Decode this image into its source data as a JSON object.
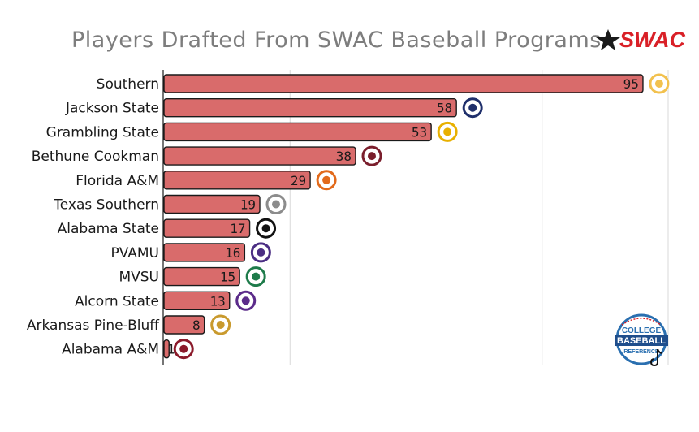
{
  "brand": {
    "name": "SWAC",
    "color": "#d92027"
  },
  "watermark": {
    "line1": "COLLEGE",
    "line2": "BASEBALL",
    "line3": "REFERENCE"
  },
  "chart_data": {
    "type": "bar",
    "orientation": "horizontal",
    "title": "Players Drafted From SWAC Baseball Programs",
    "xlabel": "",
    "ylabel": "",
    "xlim": [
      0,
      100
    ],
    "grid": true,
    "bar_color": "#d96b6b",
    "categories": [
      "Southern",
      "Jackson State",
      "Grambling State",
      "Bethune Cookman",
      "Florida A&M",
      "Texas Southern",
      "Alabama State",
      "PVAMU",
      "MVSU",
      "Alcorn State",
      "Arkansas Pine-Bluff",
      "Alabama A&M"
    ],
    "values": [
      95,
      58,
      53,
      38,
      29,
      19,
      17,
      16,
      15,
      13,
      8,
      1
    ],
    "team_logos": [
      "southern-su-logo-icon",
      "jackson-state-jsu-logo-icon",
      "grambling-g-logo-icon",
      "bethune-cookman-logo-icon",
      "florida-am-rattler-logo-icon",
      "texas-southern-logo-icon",
      "alabama-state-asu-logo-icon",
      "pvamu-panther-logo-icon",
      "mvsu-logo-icon",
      "alcorn-state-logo-icon",
      "arkansas-pine-bluff-lion-logo-icon",
      "alabama-am-logo-icon"
    ]
  }
}
